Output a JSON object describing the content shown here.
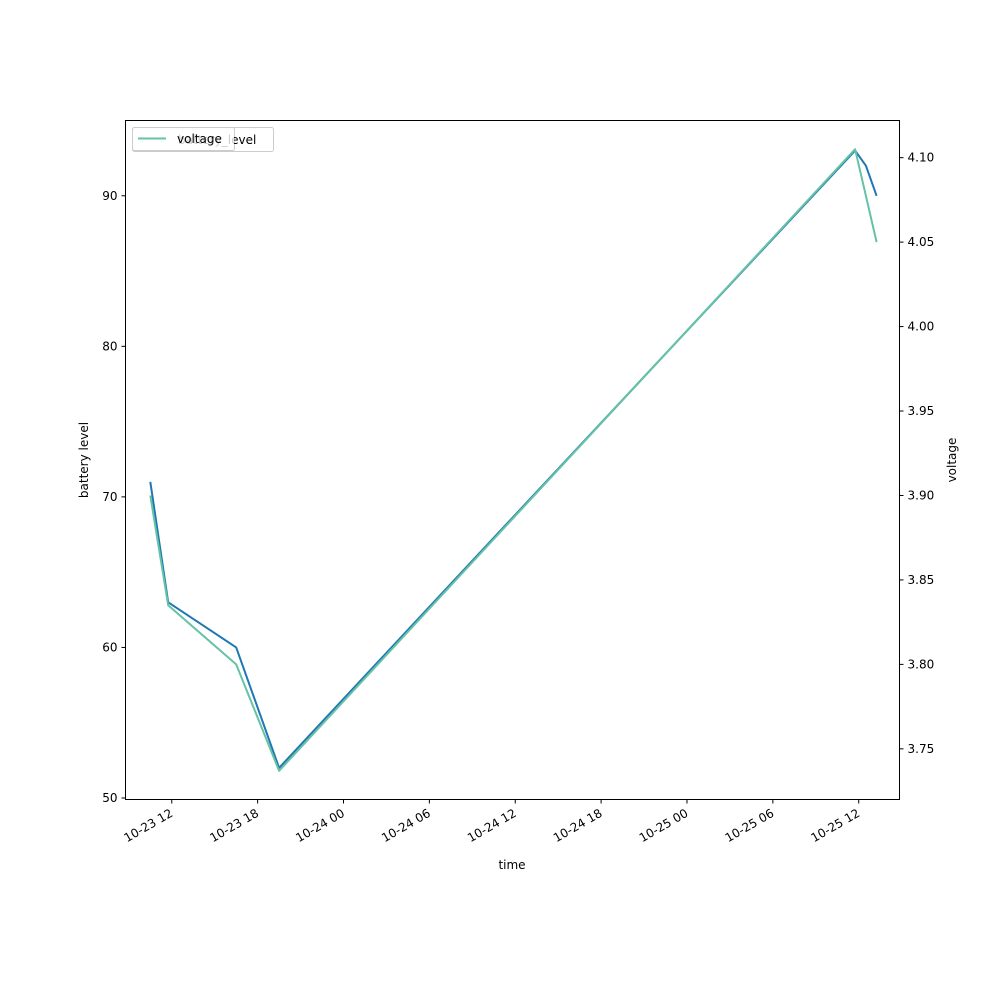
{
  "chart_data": {
    "type": "line",
    "title": "",
    "xlabel": "time",
    "ylabel_left": "battery level",
    "ylabel_right": "voltage",
    "x_ticks": [
      "10-23 12",
      "10-23 18",
      "10-24 00",
      "10-24 06",
      "10-24 12",
      "10-24 18",
      "10-25 00",
      "10-25 06",
      "10-25 12"
    ],
    "y_left_ticks": [
      "50",
      "60",
      "70",
      "80",
      "90"
    ],
    "y_right_ticks": [
      "3.75",
      "3.80",
      "3.85",
      "3.90",
      "3.95",
      "4.00",
      "4.05",
      "4.10"
    ],
    "xlim": [
      "2023-10-23 08:46",
      "2023-10-25 14:51"
    ],
    "ylim_left": [
      49.9,
      95
    ],
    "ylim_right": [
      3.72,
      4.122
    ],
    "legend": {
      "placement": "upper-left",
      "entries": [
        "voltage",
        "battery_level"
      ]
    },
    "series": [
      {
        "name": "battery_level",
        "axis": "left",
        "color": "#1f77b4",
        "x": [
          "2023-10-23 10:30",
          "2023-10-23 11:45",
          "2023-10-23 16:30",
          "2023-10-23 19:30",
          "2023-10-25 11:45",
          "2023-10-25 12:30",
          "2023-10-25 13:15"
        ],
        "y": [
          71,
          63,
          60,
          52,
          93,
          92,
          90
        ]
      },
      {
        "name": "voltage",
        "axis": "right",
        "color": "#66c2a5",
        "x": [
          "2023-10-23 10:30",
          "2023-10-23 11:45",
          "2023-10-23 16:30",
          "2023-10-23 19:30",
          "2023-10-25 11:45",
          "2023-10-25 13:15"
        ],
        "y": [
          3.9,
          3.835,
          3.8,
          3.737,
          4.105,
          4.05
        ]
      }
    ]
  }
}
